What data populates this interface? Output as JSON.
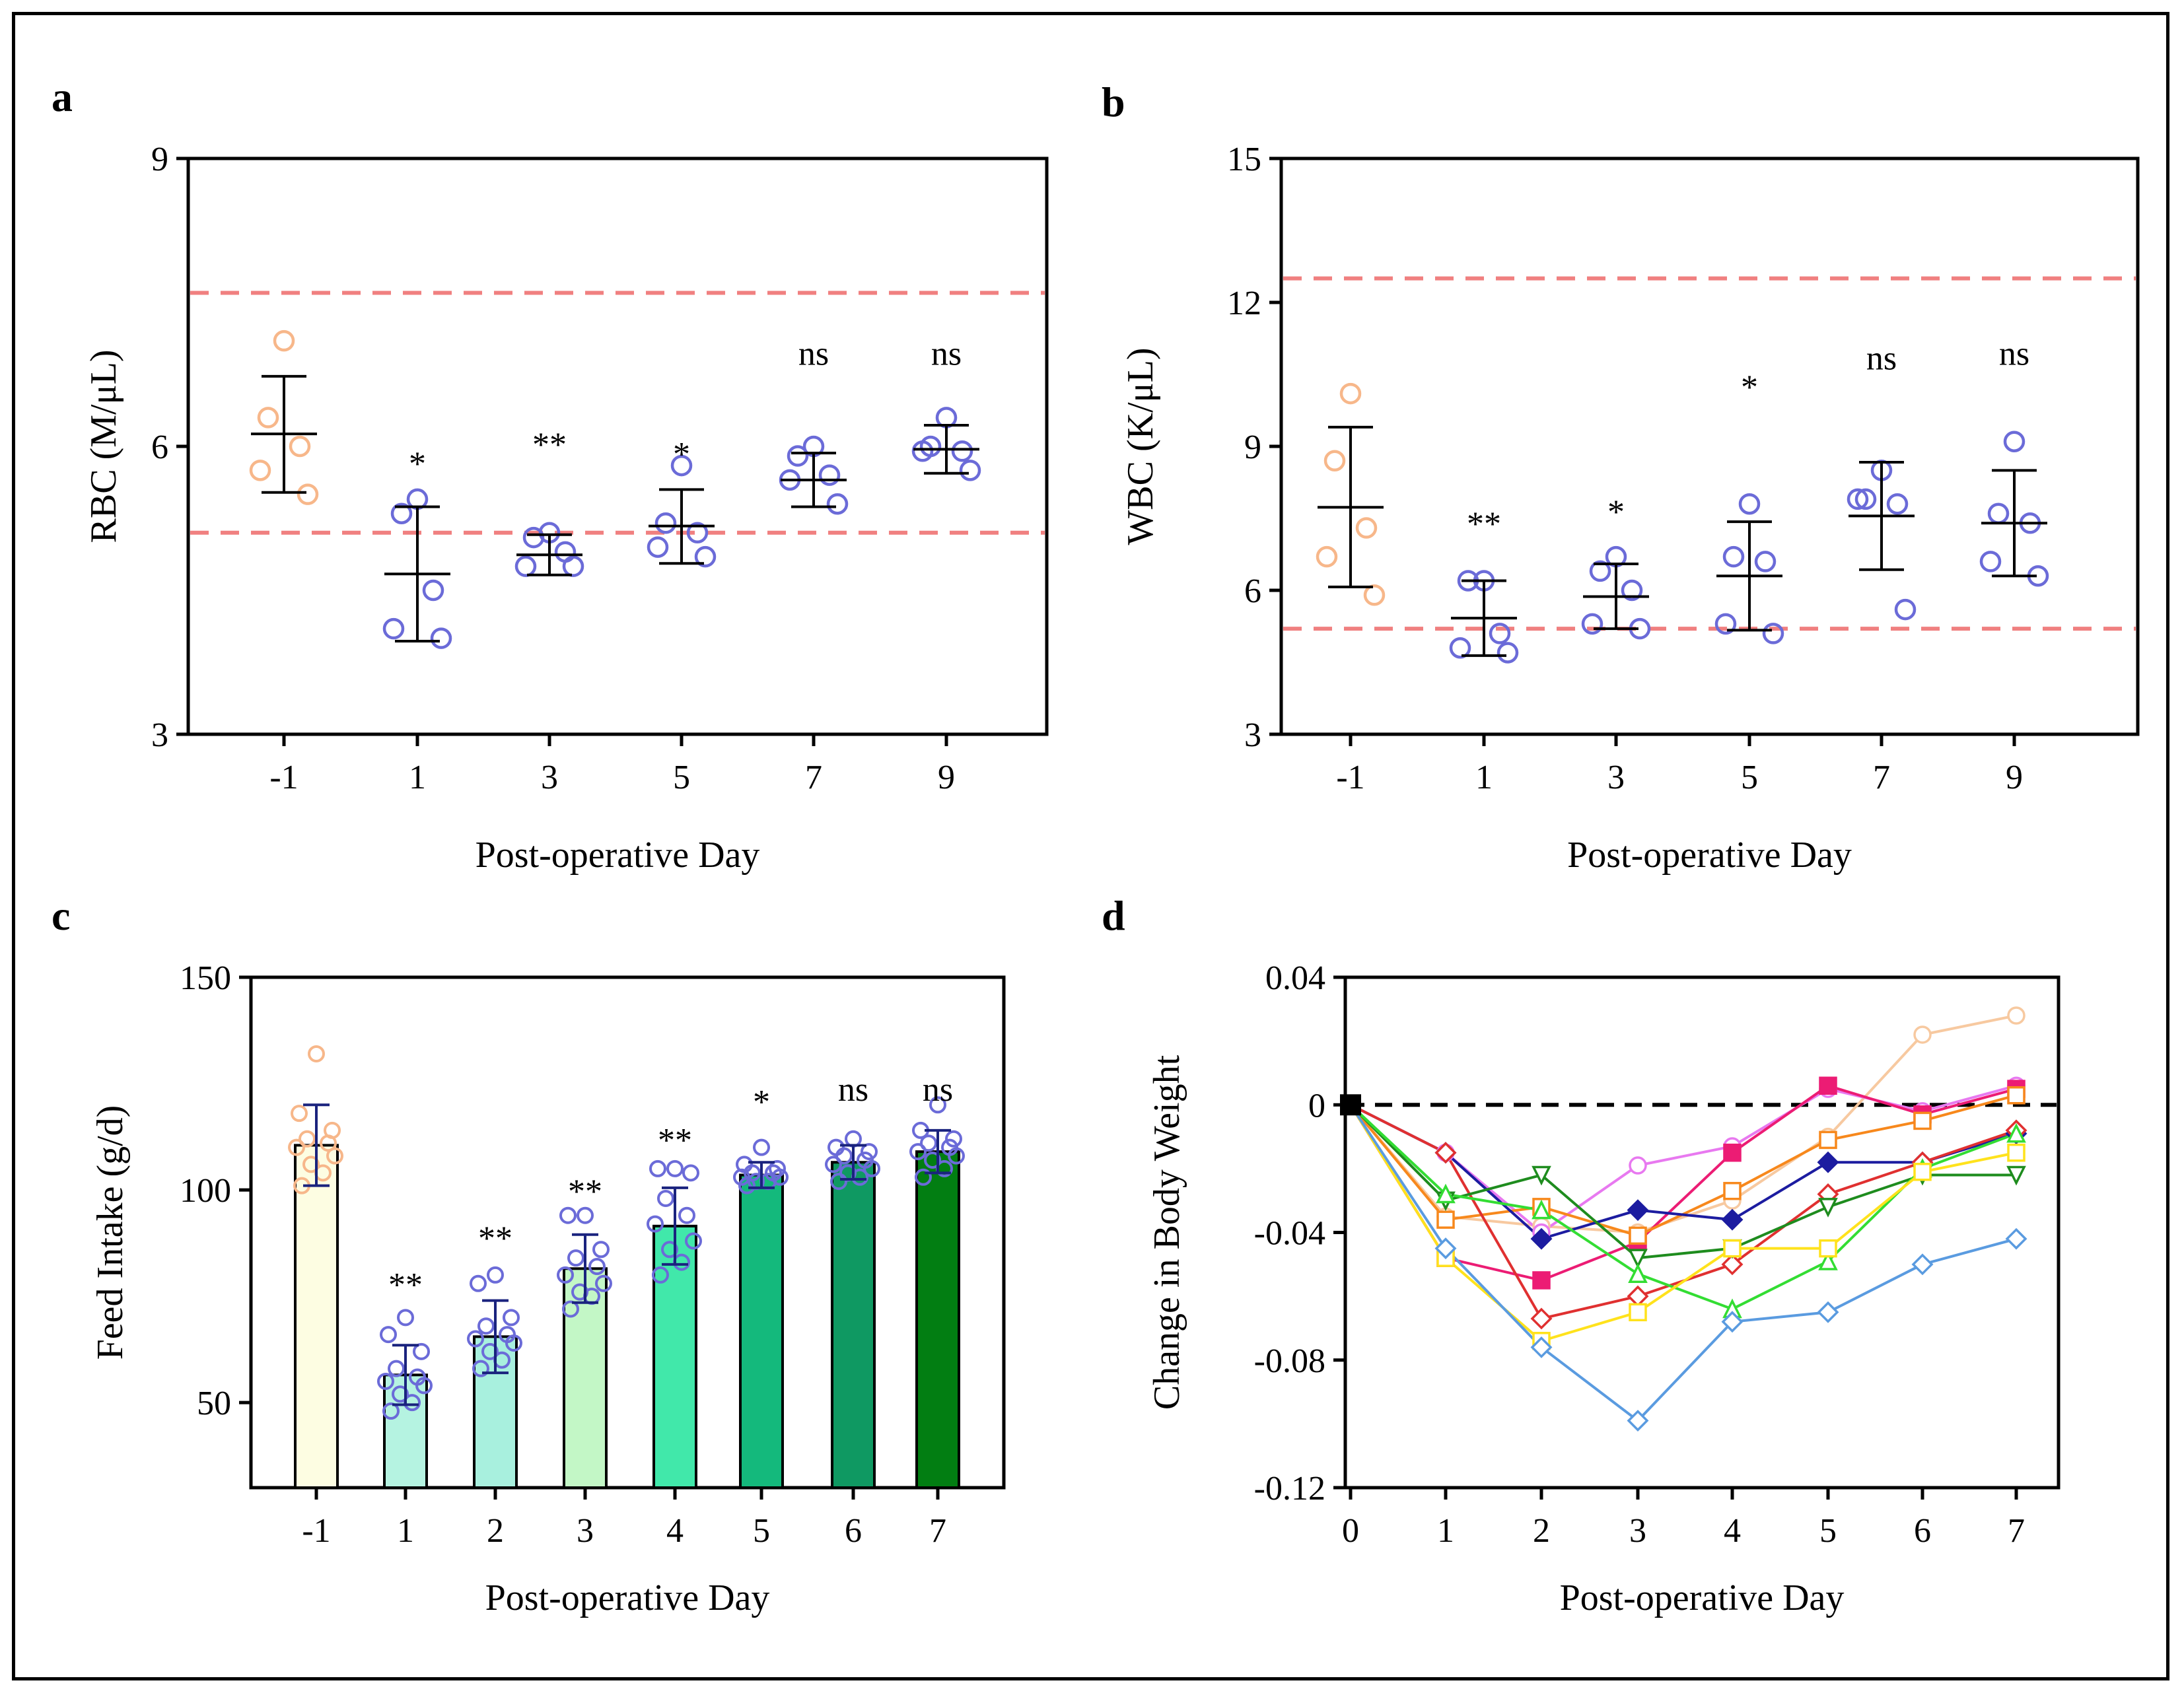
{
  "chart_data": [
    {
      "panel": "a",
      "type": "scatter",
      "xlabel": "Post-operative Day",
      "ylabel": "RBC (M/μL)",
      "categories": [
        "-1",
        "1",
        "3",
        "5",
        "7",
        "9"
      ],
      "ylim": [
        3,
        9
      ],
      "yticks": [
        "3",
        "6",
        "9"
      ],
      "ytick_values": [
        3,
        6,
        9
      ],
      "reference_lines": [
        7.6,
        5.1
      ],
      "point_colors": [
        "#f7b78a",
        "#6b6bd8",
        "#6b6bd8",
        "#6b6bd8",
        "#6b6bd8",
        "#6b6bd8"
      ],
      "points": [
        [
          7.1,
          6.3,
          6.0,
          5.75,
          5.5
        ],
        [
          5.45,
          5.3,
          4.5,
          4.1,
          4.0
        ],
        [
          5.1,
          5.05,
          4.9,
          4.75,
          4.75
        ],
        [
          5.8,
          5.2,
          5.1,
          4.95,
          4.85
        ],
        [
          6.0,
          5.9,
          5.7,
          5.65,
          5.4
        ],
        [
          6.3,
          6.0,
          5.95,
          5.95,
          5.75
        ]
      ],
      "means": [
        6.13,
        4.67,
        4.87,
        5.17,
        5.65,
        5.97
      ],
      "err_upper": [
        6.73,
        5.37,
        5.08,
        5.55,
        5.93,
        6.22
      ],
      "err_lower": [
        5.52,
        3.97,
        4.66,
        4.78,
        5.37,
        5.72
      ],
      "significance": [
        "",
        "*",
        "**",
        "*",
        "ns",
        "ns"
      ],
      "sig_y": [
        null,
        5.7,
        5.9,
        5.8,
        6.85,
        6.85
      ]
    },
    {
      "panel": "b",
      "type": "scatter",
      "xlabel": "Post-operative Day",
      "ylabel": "WBC (K/μL)",
      "categories": [
        "-1",
        "1",
        "3",
        "5",
        "7",
        "9"
      ],
      "ylim": [
        3,
        15
      ],
      "yticks": [
        "3",
        "6",
        "9",
        "12",
        "15"
      ],
      "ytick_values": [
        3,
        6,
        9,
        12,
        15
      ],
      "reference_lines": [
        12.5,
        5.2
      ],
      "point_colors": [
        "#f7b78a",
        "#6b6bd8",
        "#6b6bd8",
        "#6b6bd8",
        "#6b6bd8",
        "#6b6bd8"
      ],
      "points": [
        [
          10.1,
          8.7,
          7.3,
          6.7,
          5.9
        ],
        [
          6.2,
          6.2,
          5.1,
          4.8,
          4.7
        ],
        [
          6.7,
          6.4,
          6.0,
          5.3,
          5.2
        ],
        [
          7.8,
          6.7,
          6.6,
          5.3,
          5.1
        ],
        [
          8.5,
          7.9,
          7.8,
          7.9,
          5.6
        ],
        [
          9.1,
          7.6,
          7.4,
          6.6,
          6.3
        ]
      ],
      "means": [
        7.73,
        5.42,
        5.87,
        6.3,
        7.55,
        7.4
      ],
      "err_upper": [
        9.4,
        6.2,
        6.55,
        7.43,
        8.67,
        8.5
      ],
      "err_lower": [
        6.07,
        4.64,
        5.2,
        5.17,
        6.43,
        6.3
      ],
      "significance": [
        "",
        "**",
        "*",
        "*",
        "ns",
        "ns"
      ],
      "sig_y": [
        null,
        7.15,
        7.4,
        10.0,
        10.6,
        10.7
      ]
    },
    {
      "panel": "c",
      "type": "bar",
      "xlabel": "Post-operative Day",
      "ylabel": "Feed Intake (g/d)",
      "categories": [
        "-1",
        "1",
        "2",
        "3",
        "4",
        "5",
        "6",
        "7"
      ],
      "ylim": [
        30,
        150
      ],
      "yticks": [
        "50",
        "100",
        "150"
      ],
      "ytick_values": [
        50,
        100,
        150
      ],
      "values": [
        110.5,
        56.5,
        65.5,
        81.5,
        91.5,
        103.5,
        106.5,
        109
      ],
      "bar_colors": [
        "#fdfde2",
        "#b5f3e1",
        "#a8f0de",
        "#c3f7c6",
        "#41e8aa",
        "#14b97c",
        "#0f9962",
        "#027e12"
      ],
      "err_upper": [
        120,
        63.5,
        74,
        89.5,
        100.5,
        106.5,
        110.5,
        114
      ],
      "err_lower": [
        101,
        49.5,
        57,
        73.5,
        82.5,
        100.5,
        102.5,
        104
      ],
      "point_colors": [
        "#f7b78a",
        "#6b6bd8",
        "#6b6bd8",
        "#6b6bd8",
        "#6b6bd8",
        "#6b6bd8",
        "#6b6bd8",
        "#6b6bd8"
      ],
      "points": [
        [
          132,
          118,
          114,
          112,
          111,
          110,
          108,
          106,
          104,
          101
        ],
        [
          70,
          66,
          62,
          58,
          56,
          55,
          54,
          52,
          50,
          48
        ],
        [
          80,
          78,
          70,
          68,
          66,
          65,
          64,
          62,
          60,
          58
        ],
        [
          94,
          94,
          86,
          84,
          82,
          80,
          78,
          76,
          75,
          72
        ],
        [
          105,
          105,
          104,
          98,
          94,
          92,
          88,
          86,
          83,
          80
        ],
        [
          110,
          106,
          105,
          104,
          104,
          103,
          103,
          102,
          102,
          101
        ],
        [
          112,
          110,
          109,
          108,
          107,
          106,
          105,
          104,
          103,
          102
        ],
        [
          120,
          114,
          112,
          111,
          110,
          109,
          108,
          107,
          105,
          103
        ]
      ],
      "significance": [
        "",
        "**",
        "**",
        "**",
        "**",
        "*",
        "ns",
        "ns"
      ],
      "sig_y": [
        null,
        75,
        86,
        97,
        109,
        118,
        121,
        121
      ]
    },
    {
      "panel": "d",
      "type": "line",
      "xlabel": "Post-operative Day",
      "ylabel": "Change in Body Weight",
      "x": [
        0,
        1,
        2,
        3,
        4,
        5,
        6,
        7
      ],
      "xticks": [
        "0",
        "1",
        "2",
        "3",
        "4",
        "5",
        "6",
        "7"
      ],
      "ylim": [
        -0.12,
        0.04
      ],
      "yticks": [
        "-0.12",
        "-0.08",
        "-0.04",
        "0",
        "0.04"
      ],
      "ytick_values": [
        -0.12,
        -0.08,
        -0.04,
        0,
        0.04
      ],
      "reference_lines": [
        0
      ],
      "series": [
        {
          "color": "#f7c9a0",
          "marker": "circle",
          "values": [
            0,
            -0.035,
            -0.038,
            -0.04,
            -0.03,
            -0.01,
            0.022,
            0.028
          ]
        },
        {
          "color": "#e879f0",
          "marker": "circle",
          "values": [
            0,
            -0.015,
            -0.04,
            -0.019,
            -0.013,
            0.005,
            -0.002,
            0.006
          ]
        },
        {
          "color": "#ec1c74",
          "marker": "square-filled",
          "values": [
            0,
            -0.048,
            -0.055,
            -0.043,
            -0.015,
            0.006,
            -0.003,
            0.005
          ]
        },
        {
          "color": "#f7881c",
          "marker": "square",
          "values": [
            0,
            -0.036,
            -0.032,
            -0.041,
            -0.027,
            -0.011,
            -0.005,
            0.003
          ]
        },
        {
          "color": "#1c1ca0",
          "marker": "diamond-filled",
          "values": [
            0,
            -0.015,
            -0.042,
            -0.033,
            -0.036,
            -0.018,
            -0.018,
            -0.009
          ]
        },
        {
          "color": "#e03030",
          "marker": "diamond",
          "values": [
            0,
            -0.015,
            -0.067,
            -0.06,
            -0.05,
            -0.028,
            -0.018,
            -0.008
          ]
        },
        {
          "color": "#1e8c1e",
          "marker": "triangle-down",
          "values": [
            0,
            -0.03,
            -0.022,
            -0.048,
            -0.045,
            -0.032,
            -0.022,
            -0.022
          ]
        },
        {
          "color": "#33dd33",
          "marker": "triangle",
          "values": [
            0,
            -0.028,
            -0.033,
            -0.053,
            -0.064,
            -0.049,
            -0.02,
            -0.009
          ]
        },
        {
          "color": "#ffe21c",
          "marker": "square",
          "values": [
            0,
            -0.048,
            -0.074,
            -0.065,
            -0.045,
            -0.045,
            -0.021,
            -0.015
          ]
        },
        {
          "color": "#5a9be0",
          "marker": "diamond",
          "values": [
            0,
            -0.045,
            -0.076,
            -0.099,
            -0.068,
            -0.065,
            -0.05,
            -0.042
          ]
        }
      ]
    }
  ]
}
